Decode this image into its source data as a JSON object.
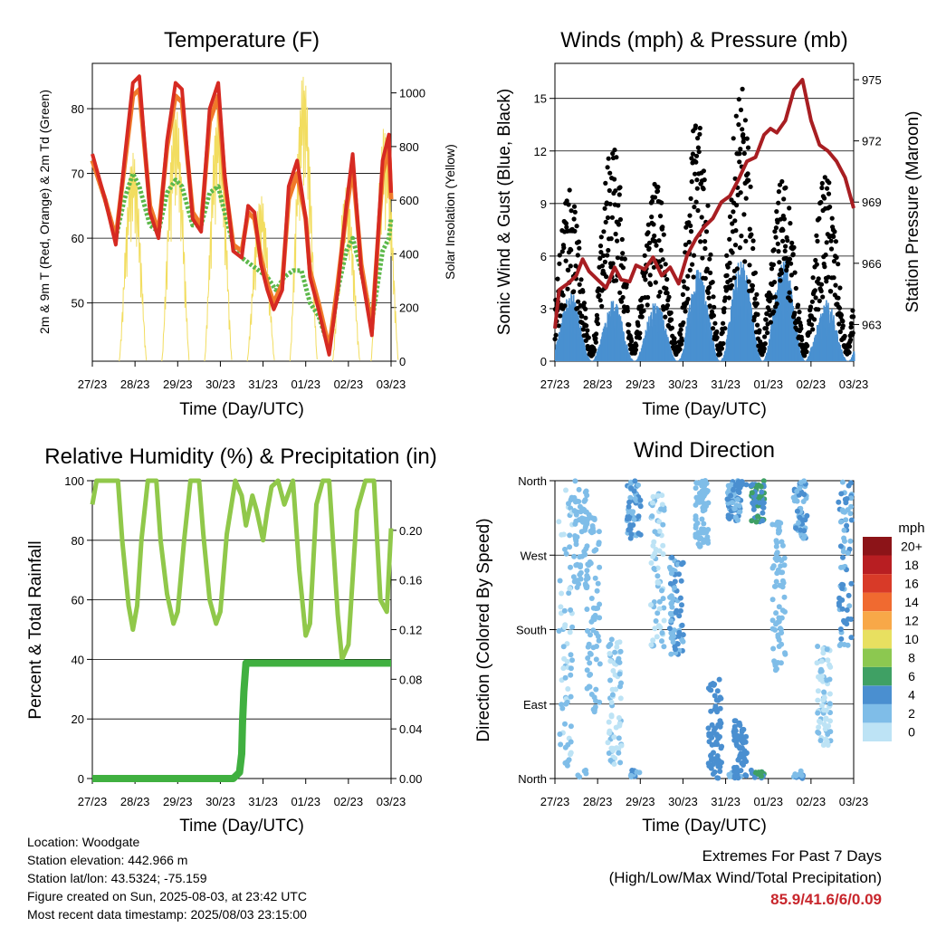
{
  "panels": {
    "temperature": {
      "title": "Temperature (F)",
      "ylabel_left": "2m & 9m T (Red, Orange) & 2m Td (Green)",
      "ylabel_right": "Solar Insolation (Yellow)",
      "xlabel": "Time (Day/UTC)"
    },
    "winds": {
      "title": "Winds (mph) & Pressure (mb)",
      "ylabel_left": "Sonic Wind & Gust (Blue, Black)",
      "ylabel_right": "Station Pressure (Maroon)",
      "xlabel": "Time (Day/UTC)"
    },
    "humidity": {
      "title": "Relative Humidity (%) & Precipitation (in)",
      "ylabel_left": "Percent & Total Rainfall",
      "xlabel": "Time (Day/UTC)"
    },
    "direction": {
      "title": "Wind Direction",
      "ylabel_left": "Direction (Colored By Speed)",
      "xlabel": "Time (Day/UTC)",
      "colorbar_title": "mph"
    }
  },
  "footer": {
    "location": "Location: Woodgate",
    "elevation": "Station elevation: 442.966 m",
    "latlon": "Station lat/lon: 43.5324; -75.159",
    "created": "Figure created on Sun, 2025-08-03, at 23:42 UTC",
    "latest": "Most recent data timestamp: 2025/08/03 23:15:00",
    "extremes_title": "Extremes For Past 7 Days",
    "extremes_subtitle": "(High/Low/Max Wind/Total Precipitation)",
    "extremes_value": "85.9/41.6/6/0.09"
  },
  "chart_data": [
    {
      "id": "temperature",
      "type": "line",
      "title": "Temperature (F)",
      "xlabel": "Time (Day/UTC)",
      "ylabel": "2m & 9m T (Red, Orange) & 2m Td (Green)",
      "y2label": "Solar Insolation (Yellow)",
      "x_ticks": [
        "27/23",
        "28/23",
        "29/23",
        "30/23",
        "31/23",
        "01/23",
        "02/23",
        "03/23"
      ],
      "xlim": [
        0,
        7
      ],
      "ylim": [
        41,
        87
      ],
      "y_ticks": [
        50,
        60,
        70,
        80
      ],
      "y2lim": [
        0,
        1110
      ],
      "y2_ticks": [
        0,
        200,
        400,
        600,
        800,
        1000
      ],
      "grid": "horizontal",
      "colors": {
        "t2m": "#d62a22",
        "t9m": "#f07a2a",
        "td": "#5cb84a",
        "solar": "#f2dd60"
      },
      "series": [
        {
          "key": "t2m",
          "axis": "left",
          "x": [
            0,
            0.3,
            0.55,
            0.75,
            0.95,
            1.1,
            1.35,
            1.55,
            1.75,
            1.95,
            2.1,
            2.35,
            2.55,
            2.75,
            2.95,
            3.1,
            3.3,
            3.5,
            3.65,
            3.8,
            3.95,
            4.1,
            4.25,
            4.45,
            4.6,
            4.8,
            5.0,
            5.1,
            5.3,
            5.55,
            5.75,
            5.95,
            6.1,
            6.3,
            6.55,
            6.8,
            6.95,
            7.0
          ],
          "y": [
            73,
            66,
            59,
            72,
            84,
            85,
            64,
            60,
            75,
            84,
            83,
            63,
            61,
            80,
            84,
            70,
            58,
            57,
            65,
            64,
            56,
            52,
            49,
            52,
            68,
            72,
            63,
            54,
            49,
            42,
            52,
            65,
            73,
            55,
            45,
            72,
            76,
            67
          ]
        },
        {
          "key": "t9m",
          "axis": "left",
          "x": [
            0,
            0.3,
            0.55,
            0.75,
            0.95,
            1.1,
            1.35,
            1.55,
            1.75,
            1.95,
            2.1,
            2.35,
            2.55,
            2.75,
            2.95,
            3.1,
            3.3,
            3.5,
            3.65,
            3.8,
            3.95,
            4.1,
            4.25,
            4.45,
            4.6,
            4.8,
            5.0,
            5.1,
            5.3,
            5.55,
            5.75,
            5.95,
            6.1,
            6.3,
            6.55,
            6.8,
            6.95,
            7.0
          ],
          "y": [
            72,
            66,
            60,
            71,
            82,
            83,
            65,
            61,
            74,
            82,
            81,
            64,
            62,
            78,
            82,
            69,
            59,
            58,
            64,
            63,
            57,
            53,
            50,
            53,
            66,
            70,
            63,
            55,
            50,
            43,
            53,
            64,
            71,
            56,
            46,
            70,
            74,
            66
          ]
        },
        {
          "key": "td",
          "axis": "left",
          "x": [
            0,
            0.3,
            0.55,
            0.75,
            0.95,
            1.1,
            1.35,
            1.55,
            1.75,
            1.95,
            2.1,
            2.35,
            2.55,
            2.75,
            2.95,
            3.1,
            3.3,
            3.5,
            3.7,
            3.9,
            4.1,
            4.3,
            4.5,
            4.7,
            4.9,
            5.1,
            5.3,
            5.55,
            5.75,
            5.95,
            6.1,
            6.3,
            6.55,
            6.8,
            6.95,
            7.0
          ],
          "y": [
            72,
            66,
            60,
            66,
            70,
            68,
            62,
            61,
            67,
            69,
            68,
            62,
            62,
            67,
            68,
            64,
            59,
            57,
            56,
            55,
            54,
            52,
            54,
            55,
            55,
            50,
            48,
            43,
            52,
            58,
            60,
            55,
            47,
            58,
            60,
            63
          ]
        },
        {
          "key": "solar",
          "axis": "right",
          "peaks": [
            {
              "day": 0.95,
              "value": 780
            },
            {
              "day": 1.95,
              "value": 960
            },
            {
              "day": 2.95,
              "value": 960
            },
            {
              "day": 3.95,
              "value": 620
            },
            {
              "day": 4.95,
              "value": 1080
            },
            {
              "day": 5.95,
              "value": 650
            },
            {
              "day": 6.85,
              "value": 880
            }
          ]
        }
      ]
    },
    {
      "id": "winds",
      "type": "scatter",
      "title": "Winds (mph) & Pressure (mb)",
      "xlabel": "Time (Day/UTC)",
      "ylabel": "Sonic Wind & Gust (Blue, Black)",
      "y2label": "Station Pressure (Maroon)",
      "x_ticks": [
        "27/23",
        "28/23",
        "29/23",
        "30/23",
        "31/23",
        "01/23",
        "02/23",
        "03/23"
      ],
      "xlim": [
        0,
        7
      ],
      "ylim": [
        0,
        17
      ],
      "y_ticks": [
        0,
        3,
        6,
        9,
        12,
        15
      ],
      "y_tick_labels": [
        "0",
        "3",
        "6",
        "9",
        "12",
        "15"
      ],
      "y2lim": [
        961.2,
        975.8
      ],
      "y2_ticks": [
        963,
        966,
        969,
        972,
        975
      ],
      "grid": "horizontal",
      "colors": {
        "wind": "#4a90d0",
        "gust": "#000000",
        "pressure": "#a81e22"
      },
      "daily_max_gust": [
        9,
        12,
        10,
        14,
        15,
        10,
        10
      ],
      "daily_max_wind": [
        4,
        3.5,
        3.5,
        5.5,
        6,
        6,
        3.5
      ],
      "series": [
        {
          "key": "pressure",
          "axis": "right",
          "x": [
            0,
            0.1,
            0.3,
            0.5,
            0.65,
            0.8,
            1.0,
            1.2,
            1.4,
            1.55,
            1.75,
            1.9,
            2.1,
            2.3,
            2.5,
            2.7,
            2.9,
            3.1,
            3.3,
            3.5,
            3.7,
            3.9,
            4.1,
            4.3,
            4.5,
            4.7,
            4.9,
            5.05,
            5.2,
            5.4,
            5.6,
            5.8,
            6.0,
            6.2,
            6.4,
            6.6,
            6.8,
            7.0
          ],
          "y": [
            962.8,
            964.7,
            965.0,
            965.4,
            966.2,
            965.6,
            965.2,
            964.8,
            965.8,
            965.2,
            965.1,
            965.9,
            965.7,
            966.3,
            965.4,
            965.8,
            965.0,
            966.4,
            967.2,
            967.8,
            968.2,
            969.0,
            969.3,
            970.1,
            971.0,
            971.2,
            972.3,
            972.6,
            972.4,
            973.0,
            974.5,
            975.0,
            973.0,
            971.8,
            971.5,
            971.0,
            970.2,
            968.7
          ]
        }
      ]
    },
    {
      "id": "humidity",
      "type": "line",
      "title": "Relative Humidity (%) & Precipitation (in)",
      "xlabel": "Time (Day/UTC)",
      "ylabel": "Percent & Total Rainfall",
      "x_ticks": [
        "27/23",
        "28/23",
        "29/23",
        "30/23",
        "31/23",
        "01/23",
        "02/23",
        "03/23"
      ],
      "xlim": [
        0,
        7
      ],
      "ylim": [
        0,
        100
      ],
      "y_ticks": [
        0,
        20,
        40,
        60,
        80,
        100
      ],
      "y2lim": [
        0,
        0.24
      ],
      "y2_ticks": [
        0.0,
        0.04,
        0.08,
        0.12,
        0.16,
        0.2
      ],
      "y2_tick_labels": [
        "0.00",
        "0.04",
        "0.08",
        "0.12",
        "0.16",
        "0.20"
      ],
      "grid": "horizontal",
      "colors": {
        "rh": "#90c84a",
        "precip": "#40b040"
      },
      "series": [
        {
          "key": "rh",
          "axis": "left",
          "x": [
            0,
            0.1,
            0.3,
            0.6,
            0.7,
            0.85,
            0.95,
            1.05,
            1.15,
            1.3,
            1.5,
            1.6,
            1.75,
            1.9,
            2.0,
            2.15,
            2.3,
            2.5,
            2.6,
            2.75,
            2.9,
            3.0,
            3.15,
            3.35,
            3.5,
            3.6,
            3.75,
            3.85,
            4.0,
            4.1,
            4.2,
            4.35,
            4.5,
            4.7,
            4.85,
            5.0,
            5.1,
            5.25,
            5.4,
            5.55,
            5.75,
            5.85,
            6.0,
            6.2,
            6.4,
            6.6,
            6.75,
            6.9,
            7.0
          ],
          "y": [
            92,
            100,
            100,
            100,
            80,
            58,
            50,
            58,
            80,
            100,
            100,
            80,
            62,
            52,
            56,
            80,
            100,
            100,
            82,
            60,
            52,
            56,
            82,
            100,
            95,
            85,
            95,
            90,
            80,
            90,
            98,
            100,
            92,
            100,
            70,
            48,
            52,
            92,
            100,
            100,
            55,
            40,
            45,
            90,
            100,
            100,
            60,
            56,
            84
          ]
        },
        {
          "key": "precip",
          "axis": "right",
          "x": [
            0,
            3.3,
            3.45,
            3.5,
            3.52,
            3.55,
            3.6,
            7.0
          ],
          "y": [
            0,
            0,
            0.005,
            0.02,
            0.045,
            0.07,
            0.093,
            0.093
          ]
        }
      ]
    },
    {
      "id": "direction",
      "type": "scatter",
      "title": "Wind Direction",
      "xlabel": "Time (Day/UTC)",
      "ylabel": "Direction (Colored By Speed)",
      "x_ticks": [
        "27/23",
        "28/23",
        "29/23",
        "30/23",
        "31/23",
        "01/23",
        "02/23",
        "03/23"
      ],
      "xlim": [
        0,
        7
      ],
      "ylim": [
        0,
        360
      ],
      "y_ticks": [
        0,
        90,
        180,
        270,
        360
      ],
      "y_tick_labels": [
        "North",
        "East",
        "South",
        "West",
        "North"
      ],
      "grid": "horizontal",
      "colorbar": {
        "title": "mph",
        "labels": [
          "0",
          "2",
          "4",
          "6",
          "8",
          "10",
          "12",
          "14",
          "16",
          "18",
          "20+"
        ],
        "colors": [
          "#bde3f5",
          "#7fbde8",
          "#4a8fd0",
          "#3fa064",
          "#8cc850",
          "#e8e060",
          "#f8a848",
          "#f06a30",
          "#d83a28",
          "#b81e22",
          "#8c1418"
        ]
      },
      "clusters": [
        {
          "day": 0.25,
          "dir": 180,
          "spread_dir": 170,
          "speed": 1
        },
        {
          "day": 0.6,
          "dir": 300,
          "spread_dir": 70,
          "speed": 2
        },
        {
          "day": 0.9,
          "dir": 200,
          "spread_dir": 120,
          "speed": 2
        },
        {
          "day": 1.4,
          "dir": 90,
          "spread_dir": 80,
          "speed": 1
        },
        {
          "day": 1.85,
          "dir": 330,
          "spread_dir": 40,
          "speed": 3
        },
        {
          "day": 2.4,
          "dir": 250,
          "spread_dir": 100,
          "speed": 1
        },
        {
          "day": 2.85,
          "dir": 210,
          "spread_dir": 60,
          "speed": 3
        },
        {
          "day": 3.45,
          "dir": 320,
          "spread_dir": 40,
          "speed": 2
        },
        {
          "day": 3.75,
          "dir": 60,
          "spread_dir": 60,
          "speed": 4
        },
        {
          "day": 4.2,
          "dir": 340,
          "spread_dir": 30,
          "speed": 3
        },
        {
          "day": 4.35,
          "dir": 30,
          "spread_dir": 40,
          "speed": 4
        },
        {
          "day": 4.75,
          "dir": 340,
          "spread_dir": 30,
          "speed": 5
        },
        {
          "day": 5.25,
          "dir": 220,
          "spread_dir": 90,
          "speed": 2
        },
        {
          "day": 5.75,
          "dir": 330,
          "spread_dir": 40,
          "speed": 3
        },
        {
          "day": 6.3,
          "dir": 100,
          "spread_dir": 60,
          "speed": 1
        },
        {
          "day": 6.8,
          "dir": 260,
          "spread_dir": 100,
          "speed": 3
        }
      ]
    }
  ]
}
